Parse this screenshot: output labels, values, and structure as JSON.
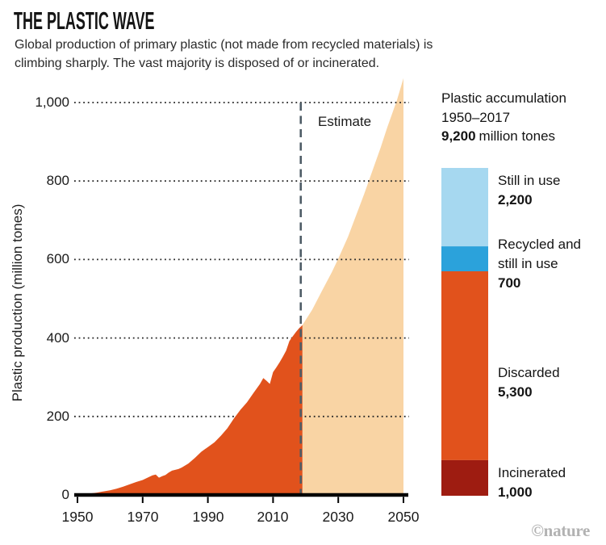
{
  "header": {
    "title": "THE PLASTIC WAVE",
    "subtitle_line1": "Global production of primary plastic (not made from recycled materials) is",
    "subtitle_line2": "climbing sharply. The vast majority is disposed of or incinerated."
  },
  "chart_data": {
    "type": "area",
    "title": "THE PLASTIC WAVE",
    "xlabel": "",
    "ylabel": "Plastic production (million tones)",
    "xlim": [
      1950,
      2050
    ],
    "ylim": [
      0,
      1000
    ],
    "grid": "dotted horizontal",
    "x_ticks": [
      1950,
      1970,
      1990,
      2010,
      2030,
      2050
    ],
    "x_tick_labels": [
      "1950",
      "1970",
      "1990",
      "2010",
      "2030",
      "2050"
    ],
    "y_ticks": [
      0,
      200,
      400,
      600,
      800,
      1000
    ],
    "y_tick_labels": [
      "0",
      "200",
      "400",
      "600",
      "800",
      "1,000"
    ],
    "estimate_divider_year": 2018.5,
    "estimate_label": "Estimate",
    "series": [
      {
        "name": "Primary plastic production (actual)",
        "color": "#e1521c",
        "points": [
          [
            1950,
            2
          ],
          [
            1952,
            3
          ],
          [
            1954,
            4
          ],
          [
            1956,
            6
          ],
          [
            1958,
            9
          ],
          [
            1960,
            12
          ],
          [
            1962,
            16
          ],
          [
            1964,
            21
          ],
          [
            1966,
            27
          ],
          [
            1968,
            33
          ],
          [
            1970,
            38
          ],
          [
            1972,
            46
          ],
          [
            1973,
            50
          ],
          [
            1974,
            52
          ],
          [
            1975,
            44
          ],
          [
            1976,
            48
          ],
          [
            1977,
            51
          ],
          [
            1978,
            57
          ],
          [
            1979,
            62
          ],
          [
            1980,
            64
          ],
          [
            1981,
            66
          ],
          [
            1982,
            70
          ],
          [
            1984,
            80
          ],
          [
            1986,
            94
          ],
          [
            1988,
            110
          ],
          [
            1990,
            122
          ],
          [
            1992,
            134
          ],
          [
            1994,
            151
          ],
          [
            1996,
            170
          ],
          [
            1998,
            195
          ],
          [
            2000,
            217
          ],
          [
            2002,
            236
          ],
          [
            2004,
            260
          ],
          [
            2006,
            283
          ],
          [
            2007,
            298
          ],
          [
            2008,
            291
          ],
          [
            2009,
            283
          ],
          [
            2010,
            313
          ],
          [
            2011,
            325
          ],
          [
            2012,
            338
          ],
          [
            2013,
            352
          ],
          [
            2014,
            368
          ],
          [
            2015,
            392
          ],
          [
            2016,
            404
          ],
          [
            2017,
            415
          ],
          [
            2018,
            425
          ],
          [
            2019,
            433
          ]
        ]
      },
      {
        "name": "Primary plastic production (estimate)",
        "color": "#f9d4a4",
        "points": [
          [
            2019,
            433
          ],
          [
            2022,
            472
          ],
          [
            2025,
            520
          ],
          [
            2028,
            567
          ],
          [
            2030,
            602
          ],
          [
            2033,
            658
          ],
          [
            2035,
            702
          ],
          [
            2038,
            768
          ],
          [
            2040,
            815
          ],
          [
            2043,
            885
          ],
          [
            2045,
            936
          ],
          [
            2048,
            1006
          ],
          [
            2050,
            1062
          ]
        ]
      }
    ],
    "accumulation": {
      "title_line1": "Plastic accumulation",
      "title_line2": "1950–2017",
      "total": 9200,
      "total_value": "9,200",
      "total_suffix": "million tones",
      "segments": [
        {
          "label": "Still in use",
          "value": 2200,
          "value_label": "2,200",
          "color": "#a6d8f0"
        },
        {
          "label": "Recycled and still in use",
          "value": 700,
          "value_label": "700",
          "color": "#2ba2db"
        },
        {
          "label": "Discarded",
          "value": 5300,
          "value_label": "5,300",
          "color": "#e1521c"
        },
        {
          "label": "Incinerated",
          "value": 1000,
          "value_label": "1,000",
          "color": "#9e1c11"
        }
      ]
    },
    "colors": {
      "divider_line": "#4e5c66",
      "gridline": "#262626",
      "axis": "#000000"
    }
  },
  "footer": {
    "credit": "©nature"
  }
}
